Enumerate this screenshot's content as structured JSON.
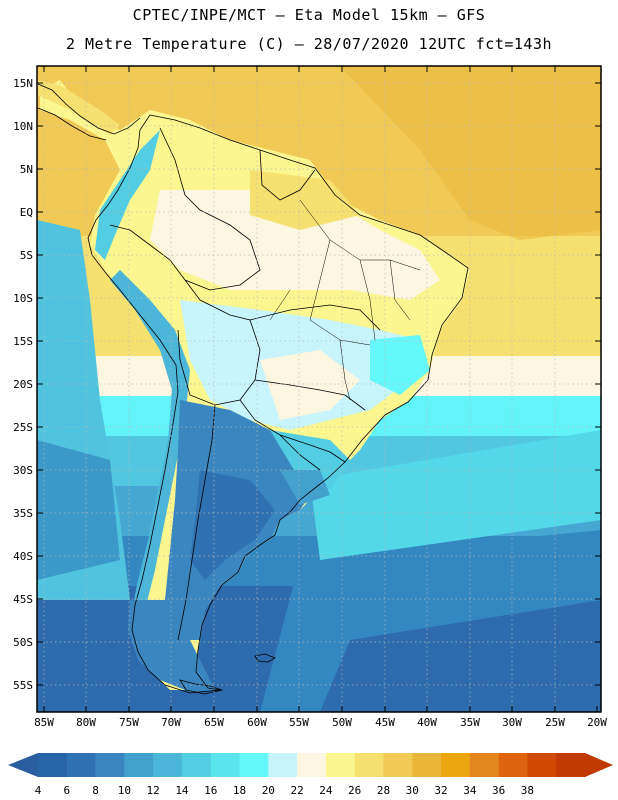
{
  "title_line1": "CPTEC/INPE/MCT  –  Eta Model 15km  –  GFS",
  "title_line2": "2 Metre Temperature (C) – 28/07/2020 12UTC fct=143h",
  "latitude_labels": [
    "15N",
    "10N",
    "5N",
    "EQ",
    "5S",
    "10S",
    "15S",
    "20S",
    "25S",
    "30S",
    "35S",
    "40S",
    "45S",
    "50S",
    "55S"
  ],
  "longitude_labels": [
    "85W",
    "80W",
    "75W",
    "70W",
    "65W",
    "60W",
    "55W",
    "50W",
    "45W",
    "40W",
    "35W",
    "30W",
    "25W",
    "20W"
  ],
  "colorbar": {
    "labels": [
      "4",
      "6",
      "8",
      "10",
      "12",
      "14",
      "16",
      "18",
      "20",
      "22",
      "24",
      "26",
      "28",
      "30",
      "32",
      "34",
      "36",
      "38"
    ],
    "colors": [
      "#2a64a8",
      "#2f72b4",
      "#3a86c0",
      "#44a0cc",
      "#4cb6d8",
      "#52cde2",
      "#5ae4ec",
      "#64f8fa",
      "#c8f4fc",
      "#fdf6e0",
      "#fcf690",
      "#f6e070",
      "#f0ca54",
      "#eab63a",
      "#eca610",
      "#e4861e",
      "#de6410",
      "#d04a06",
      "#c03a02"
    ],
    "under_color": "#2a5ea0",
    "over_color": "#c03a02"
  }
}
